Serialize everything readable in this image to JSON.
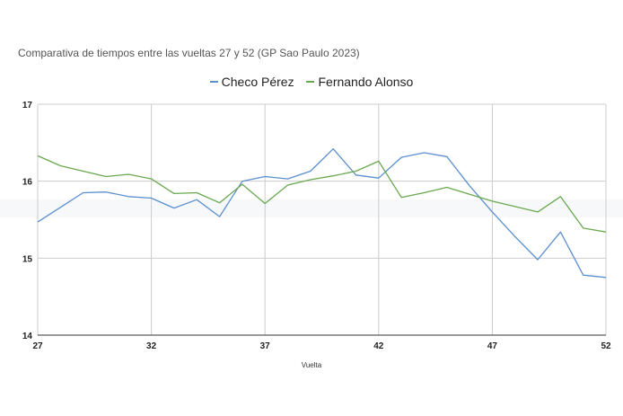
{
  "chart_data": {
    "type": "line",
    "title": "Comparativa de tiempos entre las vueltas 27 y 52 (GP Sao Paulo 2023)",
    "xlabel": "Vuelta",
    "ylabel": "",
    "xlim": [
      27,
      52
    ],
    "ylim": [
      14,
      17
    ],
    "x_ticks": [
      "27",
      "32",
      "37",
      "42",
      "47",
      "52"
    ],
    "y_ticks": [
      "17",
      "16",
      "15",
      "14"
    ],
    "grid": true,
    "legend_position": "top-center",
    "x": [
      27,
      28,
      29,
      30,
      31,
      32,
      33,
      34,
      35,
      36,
      37,
      38,
      39,
      40,
      41,
      42,
      43,
      44,
      45,
      46,
      47,
      48,
      49,
      50,
      51,
      52
    ],
    "series": [
      {
        "name": "Checo Pérez",
        "color": "#5b8fcf",
        "values": [
          15.47,
          15.66,
          15.85,
          15.86,
          15.8,
          15.78,
          15.65,
          15.76,
          15.54,
          16.0,
          16.06,
          16.03,
          16.13,
          16.42,
          16.08,
          16.04,
          16.31,
          16.37,
          16.32,
          15.94,
          15.6,
          15.28,
          14.98,
          15.34,
          14.78,
          14.75
        ]
      },
      {
        "name": "Fernando Alonso",
        "color": "#6aa84f",
        "values": [
          16.33,
          16.2,
          16.13,
          16.06,
          16.09,
          16.03,
          15.84,
          15.85,
          15.72,
          15.96,
          15.71,
          15.95,
          16.02,
          16.07,
          16.13,
          16.26,
          15.79,
          15.85,
          15.92,
          15.83,
          15.74,
          15.67,
          15.6,
          15.8,
          15.39,
          15.34
        ]
      }
    ]
  }
}
